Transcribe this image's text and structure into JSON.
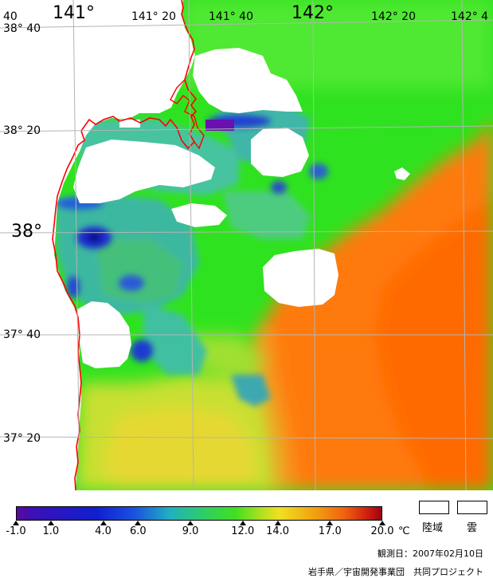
{
  "map": {
    "lon_labels": [
      "141°",
      "141° 20",
      "141° 40",
      "142°",
      "142° 20",
      "142° 4"
    ],
    "lon_corner": "40",
    "lat_labels": [
      "38° 40",
      "38° 20",
      "38°",
      "37° 40",
      "37° 20"
    ],
    "colors": {
      "sea_green": "#2fe21f",
      "coast": "#ff0000",
      "grid": "#b4b4b4",
      "orange": "#ff7a10",
      "yellow": "#d8e830",
      "teal": "#3db8a0",
      "blue": "#1f2fd0",
      "purple": "#6a10b0",
      "cloud": "#ffffff"
    }
  },
  "legend": {
    "min": -1.0,
    "max": 20.0,
    "tick_labels": [
      "-1.0",
      "1.0",
      "4.0",
      "6.0",
      "9.0",
      "12.0",
      "14.0",
      "17.0",
      "20.0"
    ],
    "unit": "℃",
    "swatches": [
      "陸域",
      "雲"
    ]
  },
  "footer": {
    "observation": "観測日：2007年02月10日",
    "credit": "岩手県／宇宙開発事業団　共同プロジェクト"
  }
}
